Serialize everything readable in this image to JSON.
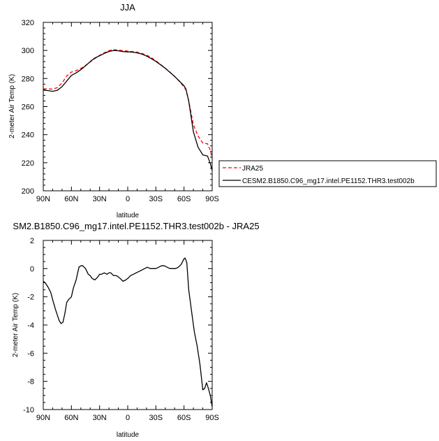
{
  "chart_data": [
    {
      "type": "line",
      "title": "JJA",
      "xlabel": "latitude",
      "ylabel": "2-meter Air Temp (K)",
      "xlim": [
        90,
        -90
      ],
      "ylim": [
        200,
        320
      ],
      "x_ticks": [
        {
          "value": 90,
          "label": "90N"
        },
        {
          "value": 60,
          "label": "60N"
        },
        {
          "value": 30,
          "label": "30N"
        },
        {
          "value": 0,
          "label": "0"
        },
        {
          "value": -30,
          "label": "30S"
        },
        {
          "value": -60,
          "label": "60S"
        },
        {
          "value": -90,
          "label": "90S"
        }
      ],
      "y_ticks": [
        200,
        220,
        240,
        260,
        280,
        300,
        320
      ],
      "legend_position": "right",
      "series": [
        {
          "name": "JRA25",
          "color": "#ff0000",
          "dash": "dashed",
          "x": [
            90,
            85,
            80,
            75,
            70,
            65,
            60,
            55,
            50,
            45,
            40,
            35,
            30,
            25,
            20,
            15,
            10,
            5,
            0,
            -5,
            -10,
            -15,
            -20,
            -25,
            -30,
            -35,
            -40,
            -45,
            -50,
            -55,
            -60,
            -62,
            -65,
            -70,
            -75,
            -80,
            -85,
            -88,
            -90
          ],
          "values": [
            272.7,
            272.6,
            272.5,
            273.5,
            276.8,
            281.8,
            284.6,
            285.6,
            287.2,
            289.3,
            291.8,
            294.2,
            296.5,
            298.3,
            299.9,
            300.5,
            300.3,
            299.8,
            299.5,
            299.2,
            298.8,
            297.9,
            296.7,
            295.0,
            292.6,
            290.0,
            287.4,
            284.5,
            281.5,
            278.0,
            274.0,
            271.8,
            264.0,
            247.0,
            239.0,
            234.0,
            233.5,
            229.0,
            223.0
          ]
        },
        {
          "name": "CESM2.B1850.C96_mg17.intel.PE1152.THR3.test002b",
          "color": "#000000",
          "dash": "solid",
          "x": [
            90,
            85,
            80,
            75,
            70,
            65,
            60,
            55,
            50,
            45,
            40,
            35,
            30,
            25,
            20,
            15,
            10,
            5,
            0,
            -5,
            -10,
            -15,
            -20,
            -25,
            -30,
            -35,
            -40,
            -45,
            -50,
            -55,
            -60,
            -62,
            -65,
            -70,
            -75,
            -80,
            -85,
            -88,
            -90
          ],
          "values": [
            271.8,
            271.4,
            270.9,
            271.6,
            274.2,
            278.2,
            282.2,
            284.0,
            286.3,
            289.0,
            292.0,
            294.6,
            296.2,
            297.9,
            299.3,
            300.0,
            299.8,
            299.2,
            299.0,
            298.8,
            298.3,
            297.4,
            296.0,
            294.2,
            292.2,
            289.8,
            287.3,
            284.4,
            281.5,
            278.2,
            274.8,
            272.5,
            264.0,
            242.0,
            231.0,
            225.6,
            224.8,
            219.5,
            214.5
          ]
        }
      ]
    },
    {
      "type": "line",
      "title": "SM2.B1850.C96_mg17.intel.PE1152.THR3.test002b - JRA25",
      "xlabel": "latitude",
      "ylabel": "2-meter Air Temp (K)",
      "xlim": [
        90,
        -90
      ],
      "ylim": [
        -10,
        2
      ],
      "x_ticks": [
        {
          "value": 90,
          "label": "90N"
        },
        {
          "value": 60,
          "label": "60N"
        },
        {
          "value": 30,
          "label": "30N"
        },
        {
          "value": 0,
          "label": "0"
        },
        {
          "value": -30,
          "label": "30S"
        },
        {
          "value": -60,
          "label": "60S"
        },
        {
          "value": -90,
          "label": "90S"
        }
      ],
      "y_ticks": [
        -10,
        -8,
        -6,
        -4,
        -2,
        0,
        2
      ],
      "series": [
        {
          "color": "#000000",
          "dash": "solid",
          "x": [
            90,
            88,
            85,
            82,
            80,
            77,
            75,
            73,
            71,
            69,
            67,
            65,
            63,
            60,
            58,
            55,
            52,
            50,
            48,
            45,
            42,
            40,
            38,
            35,
            32,
            30,
            28,
            25,
            22,
            20,
            18,
            15,
            12,
            10,
            8,
            5,
            2,
            0,
            -3,
            -6,
            -9,
            -12,
            -15,
            -18,
            -21,
            -24,
            -27,
            -30,
            -33,
            -36,
            -39,
            -42,
            -45,
            -48,
            -51,
            -54,
            -57,
            -60,
            -61,
            -62,
            -63,
            -65,
            -68,
            -71,
            -74,
            -77,
            -80,
            -82,
            -84,
            -86,
            -88,
            -90
          ],
          "values": [
            -0.9,
            -1.0,
            -1.3,
            -1.7,
            -2.2,
            -2.9,
            -3.3,
            -3.7,
            -3.9,
            -3.8,
            -3.2,
            -2.4,
            -2.2,
            -2.0,
            -1.4,
            -0.8,
            0.1,
            0.2,
            0.2,
            0.0,
            -0.4,
            -0.5,
            -0.7,
            -0.8,
            -0.6,
            -0.4,
            -0.4,
            -0.3,
            -0.4,
            -0.3,
            -0.3,
            -0.5,
            -0.5,
            -0.6,
            -0.7,
            -0.9,
            -0.8,
            -0.7,
            -0.5,
            -0.4,
            -0.3,
            -0.2,
            -0.1,
            0.0,
            0.1,
            0.0,
            0.0,
            0.0,
            0.1,
            0.2,
            0.2,
            0.1,
            0.0,
            0.0,
            0.0,
            0.1,
            0.3,
            0.7,
            0.75,
            0.6,
            0.4,
            -1.5,
            -3.0,
            -4.5,
            -5.5,
            -6.8,
            -8.6,
            -8.5,
            -8.1,
            -8.5,
            -9.0,
            -9.8
          ]
        }
      ]
    }
  ]
}
